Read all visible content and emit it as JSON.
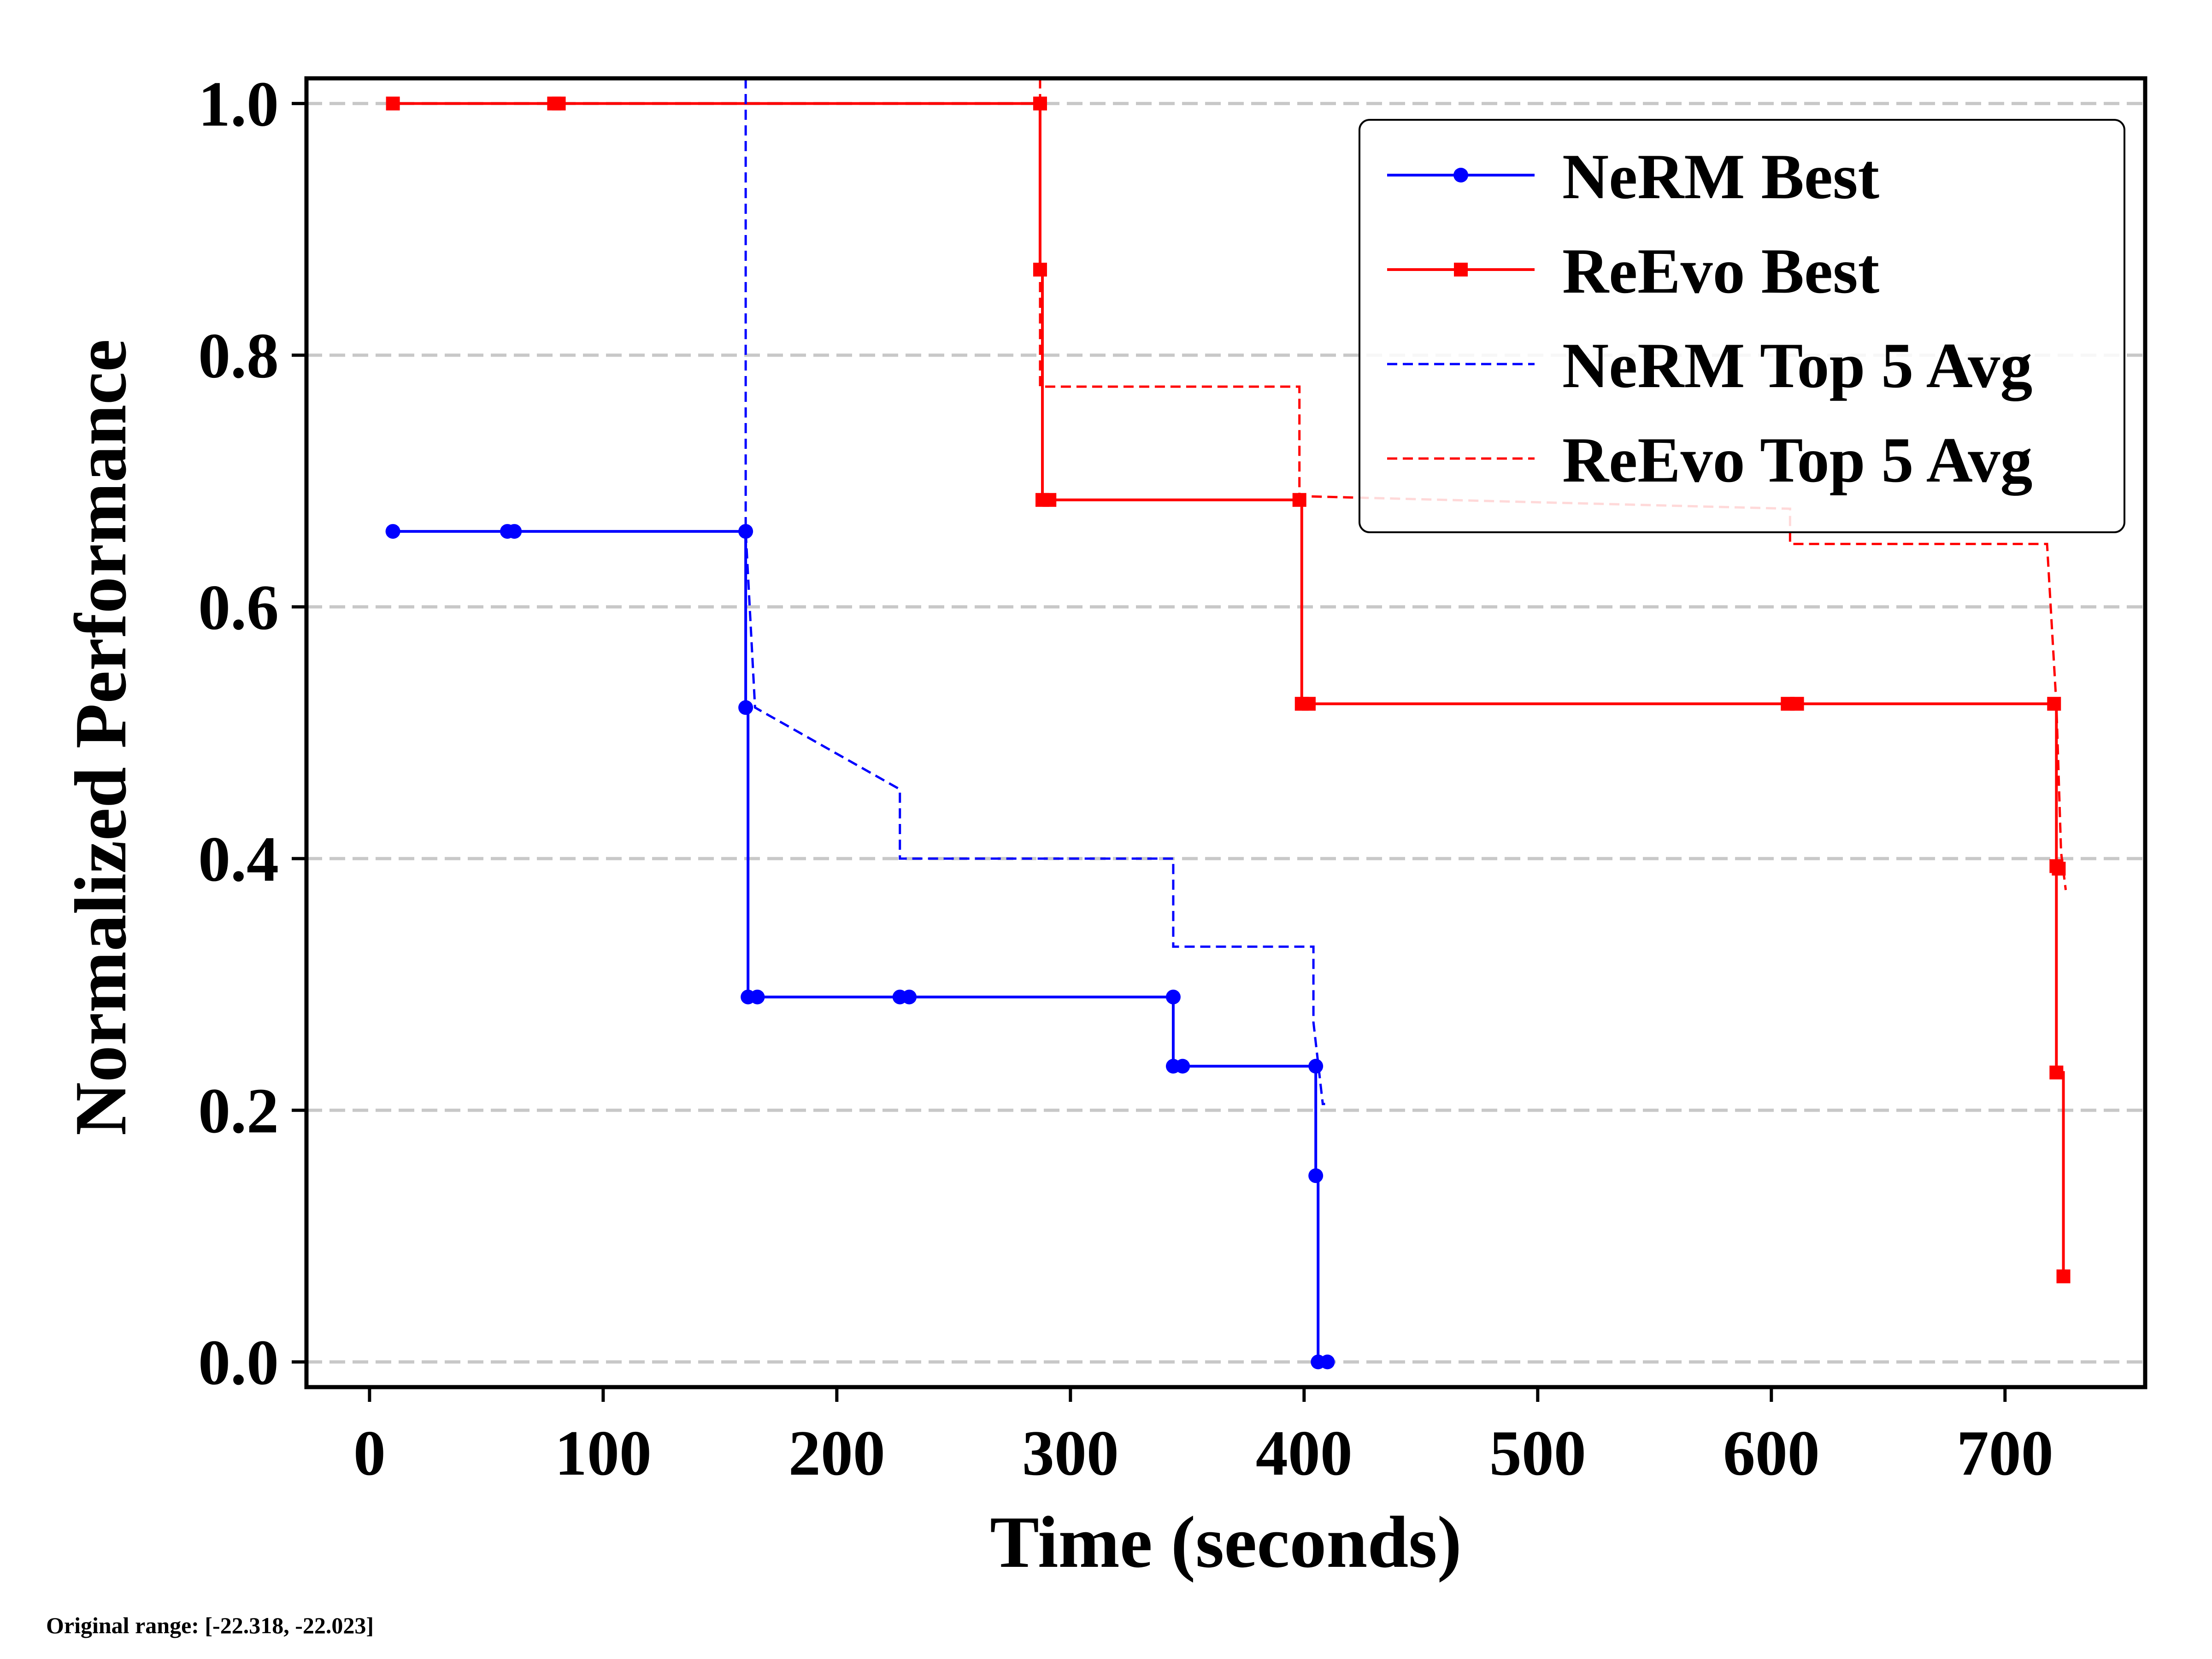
{
  "note": "Original range: [-22.318, -22.023]",
  "colors": {
    "nerm": "#0000ff",
    "reevo": "#ff0000",
    "grid": "#c8c8c8"
  },
  "chart_data": {
    "type": "line",
    "title": "",
    "xlabel": "Time (seconds)",
    "ylabel": "Normalized Performance",
    "xlim": [
      -27,
      760
    ],
    "ylim": [
      -0.02,
      1.02
    ],
    "xticks": [
      0,
      100,
      200,
      300,
      400,
      500,
      600,
      700
    ],
    "yticks": [
      0.0,
      0.2,
      0.4,
      0.6,
      0.8,
      1.0
    ],
    "ytick_labels": [
      "0.0",
      "0.2",
      "0.4",
      "0.6",
      "0.8",
      "1.0"
    ],
    "grid": "horizontal dashed",
    "legend_position": "top-right",
    "series": [
      {
        "name": "NeRM Best",
        "color": "#0000ff",
        "style": "solid",
        "marker": "circle",
        "step": true,
        "points": [
          [
            10,
            0.66
          ],
          [
            59,
            0.66
          ],
          [
            62,
            0.66
          ],
          [
            161,
            0.66
          ],
          [
            161,
            0.52
          ],
          [
            162,
            0.29
          ],
          [
            166,
            0.29
          ],
          [
            227,
            0.29
          ],
          [
            231,
            0.29
          ],
          [
            344,
            0.29
          ],
          [
            344,
            0.235
          ],
          [
            348,
            0.235
          ],
          [
            405,
            0.235
          ],
          [
            405,
            0.148
          ],
          [
            406,
            0.0
          ],
          [
            410,
            0.0
          ]
        ]
      },
      {
        "name": "ReEvo Best",
        "color": "#ff0000",
        "style": "solid",
        "marker": "square",
        "step": true,
        "points": [
          [
            10,
            1.0
          ],
          [
            79,
            1.0
          ],
          [
            81,
            1.0
          ],
          [
            287,
            1.0
          ],
          [
            287,
            0.868
          ],
          [
            288,
            0.685
          ],
          [
            291,
            0.685
          ],
          [
            398,
            0.685
          ],
          [
            399,
            0.523
          ],
          [
            402,
            0.523
          ],
          [
            607,
            0.523
          ],
          [
            611,
            0.523
          ],
          [
            721,
            0.523
          ],
          [
            722,
            0.394
          ],
          [
            723,
            0.392
          ],
          [
            722,
            0.23
          ],
          [
            725,
            0.068
          ]
        ]
      },
      {
        "name": "NeRM Top 5 Avg",
        "color": "#0000ff",
        "style": "dashed",
        "points": [
          [
            161,
            1.02
          ],
          [
            161,
            0.66
          ],
          [
            165,
            0.52
          ],
          [
            227,
            0.455
          ],
          [
            227,
            0.4
          ],
          [
            344,
            0.4
          ],
          [
            344,
            0.33
          ],
          [
            404,
            0.33
          ],
          [
            404,
            0.27
          ],
          [
            408,
            0.205
          ],
          [
            409,
            0.205
          ]
        ]
      },
      {
        "name": "ReEvo Top 5 Avg",
        "color": "#ff0000",
        "style": "dashed",
        "points": [
          [
            287,
            1.02
          ],
          [
            287,
            0.775
          ],
          [
            398,
            0.775
          ],
          [
            398,
            0.688
          ],
          [
            608,
            0.678
          ],
          [
            608,
            0.65
          ],
          [
            718,
            0.65
          ],
          [
            722,
            0.522
          ],
          [
            724,
            0.405
          ],
          [
            726,
            0.375
          ]
        ]
      }
    ]
  }
}
